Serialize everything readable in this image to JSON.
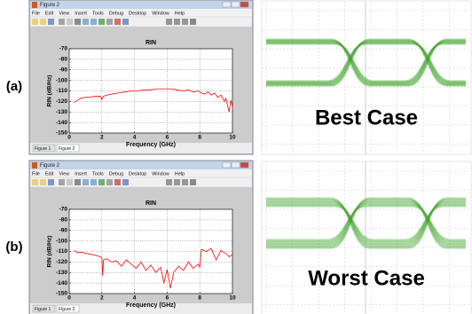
{
  "windows": [
    {
      "label": "(a)",
      "title": "Figure 2",
      "menu": [
        "File",
        "Edit",
        "View",
        "Insert",
        "Tools",
        "Debug",
        "Desktop",
        "Window",
        "Help"
      ],
      "tabs": [
        "Figure 1",
        "Figure 2"
      ],
      "eye_caption": "Best Case"
    },
    {
      "label": "(b)",
      "title": "Figure 2",
      "menu": [
        "File",
        "Edit",
        "View",
        "Insert",
        "Tools",
        "Debug",
        "Desktop",
        "Window",
        "Help"
      ],
      "tabs": [
        "Figure 1",
        "Figure 2"
      ],
      "eye_caption": "Worst Case"
    }
  ],
  "chart_data": [
    {
      "type": "line",
      "title": "RIN",
      "x_label": "Frequency (GHz)",
      "y_label": "RIN (dB/Hz)",
      "color": "#ff0000",
      "x": [
        0.3,
        0.5,
        0.7,
        1,
        1.3,
        1.6,
        1.9,
        2.0,
        2.1,
        2.3,
        2.6,
        3,
        3.4,
        3.8,
        4.2,
        4.6,
        5,
        5.4,
        5.8,
        6.2,
        6.6,
        7,
        7.3,
        7.6,
        7.9,
        8.1,
        8.3,
        8.5,
        8.7,
        8.9,
        9.1,
        9.3,
        9.5,
        9.6,
        9.7,
        9.8,
        9.9,
        10
      ],
      "values": [
        -121,
        -119,
        -117,
        -116,
        -116,
        -115,
        -115,
        -118,
        -115,
        -114,
        -113,
        -112,
        -111,
        -110,
        -110,
        -109,
        -109,
        -108,
        -108,
        -108,
        -109,
        -110,
        -109,
        -111,
        -110,
        -112,
        -113,
        -111,
        -114,
        -112,
        -116,
        -114,
        -120,
        -117,
        -124,
        -130,
        -119,
        -125
      ],
      "xlim": [
        0,
        10
      ],
      "xticks": [
        0,
        2,
        4,
        6,
        8,
        10
      ],
      "ylim": [
        -150,
        -70
      ],
      "yticks": [
        -70,
        -80,
        -90,
        -100,
        -110,
        -120,
        -130,
        -140,
        -150
      ],
      "grid": true
    },
    {
      "type": "line",
      "title": "RIN",
      "x_label": "Frequency (GHz)",
      "y_label": "RIN (dB/Hz)",
      "color": "#ff0000",
      "x": [
        0.3,
        0.5,
        0.8,
        1.1,
        1.4,
        1.7,
        1.9,
        2.0,
        2.05,
        2.1,
        2.3,
        2.6,
        2.9,
        3.2,
        3.5,
        3.8,
        4.1,
        4.4,
        4.7,
        5,
        5.3,
        5.6,
        5.8,
        6.0,
        6.2,
        6.4,
        6.7,
        7,
        7.3,
        7.6,
        7.9,
        8.0,
        8.1,
        8.4,
        8.7,
        9,
        9.3,
        9.6,
        9.8,
        10
      ],
      "values": [
        -109,
        -111,
        -111,
        -112,
        -113,
        -114,
        -115,
        -116,
        -133,
        -118,
        -117,
        -120,
        -119,
        -124,
        -118,
        -122,
        -126,
        -120,
        -128,
        -123,
        -130,
        -125,
        -140,
        -127,
        -145,
        -130,
        -124,
        -128,
        -120,
        -126,
        -122,
        -125,
        -108,
        -110,
        -107,
        -118,
        -109,
        -112,
        -115,
        -113
      ],
      "xlim": [
        0,
        10
      ],
      "xticks": [
        0,
        2,
        4,
        6,
        8,
        10
      ],
      "ylim": [
        -150,
        -70
      ],
      "yticks": [
        -70,
        -80,
        -90,
        -100,
        -110,
        -120,
        -130,
        -140,
        -150
      ],
      "grid": true
    }
  ]
}
